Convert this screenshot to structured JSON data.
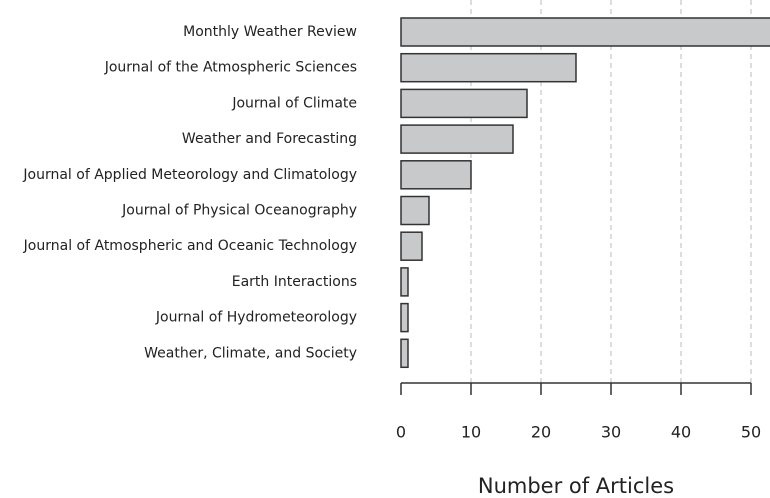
{
  "chart_data": {
    "type": "barh",
    "categories": [
      "Monthly Weather Review",
      "Journal of the Atmospheric Sciences",
      "Journal of Climate",
      "Weather and Forecasting",
      "Journal of Applied Meteorology and Climatology",
      "Journal of Physical Oceanography",
      "Journal of Atmospheric and Oceanic Technology",
      "Earth Interactions",
      "Journal of Hydrometeorology",
      "Weather, Climate, and Society"
    ],
    "values": [
      55,
      25,
      18,
      16,
      10,
      4,
      3,
      1,
      1,
      1
    ],
    "color": "#c8c9cb",
    "xlabel": "Number of Articles",
    "xlim": [
      0,
      50
    ],
    "xticks": [
      0,
      10,
      20,
      30,
      40,
      50
    ],
    "grid": true
  }
}
